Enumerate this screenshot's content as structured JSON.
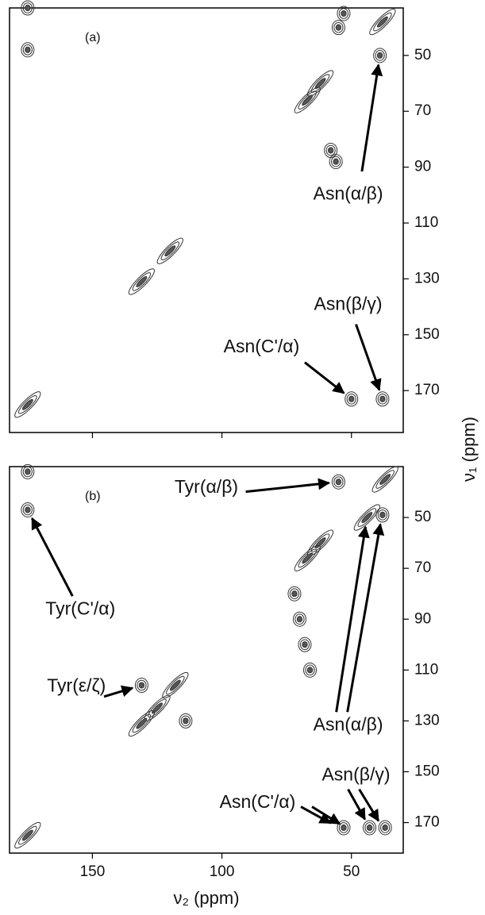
{
  "chart_data": [
    {
      "type": "contour",
      "panel_label": "(a)",
      "ylabel": "ν₁ (ppm)",
      "xlim": [
        182,
        30
      ],
      "ylim": [
        33,
        185
      ],
      "xticks": [
        150,
        100,
        50
      ],
      "yticks": [
        50,
        70,
        90,
        110,
        130,
        150,
        170
      ],
      "peaks": {
        "x": [
          175,
          175,
          38,
          39,
          55,
          53,
          62,
          67,
          58,
          56,
          120,
          131,
          175,
          50,
          38
        ],
        "y": [
          33,
          48,
          38,
          50,
          40,
          35,
          60,
          66,
          84,
          88,
          120,
          131,
          175,
          173,
          173
        ]
      },
      "annotations": [
        "Asn(α/β)",
        "Asn(β/γ)",
        "Asn(C'/α)"
      ]
    },
    {
      "type": "contour",
      "panel_label": "(b)",
      "xlabel": "ν₂ (ppm)",
      "xlim": [
        182,
        30
      ],
      "ylim": [
        30,
        182
      ],
      "xticks": [
        150,
        100,
        50
      ],
      "yticks": [
        50,
        70,
        90,
        110,
        130,
        150,
        170
      ],
      "peaks": {
        "x": [
          175,
          175,
          37,
          55,
          44,
          38,
          62,
          67,
          131,
          118,
          125,
          131,
          114,
          175,
          53,
          43,
          37,
          72,
          70,
          68,
          66
        ],
        "y": [
          32,
          47,
          35,
          36,
          50,
          49,
          60,
          66,
          116,
          116,
          125,
          131,
          130,
          175,
          172,
          172,
          172,
          80,
          90,
          100,
          110
        ]
      },
      "annotations": [
        "Tyr(α/β)",
        "Tyr(C'/α)",
        "Tyr(ε/ζ)",
        "Asn(α/β)",
        "Asn(β/γ)",
        "Asn(C'/α)"
      ]
    }
  ]
}
